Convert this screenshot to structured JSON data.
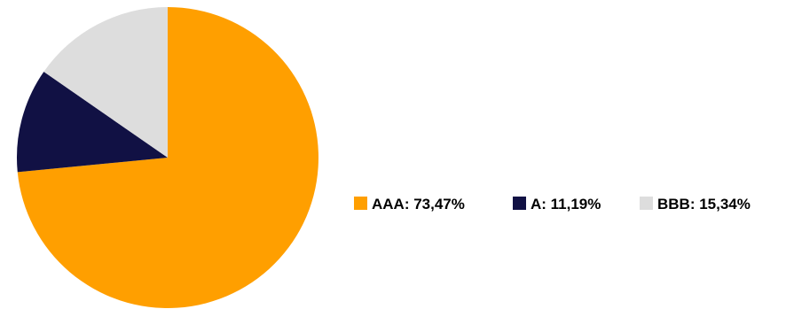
{
  "chart_data": {
    "type": "pie",
    "title": "",
    "start_angle_deg": 0,
    "direction": "clockwise",
    "slices": [
      {
        "label": "AAA",
        "value": 73.47,
        "display": "AAA: 73,47%",
        "color": "#FF9F00"
      },
      {
        "label": "A",
        "value": 11.19,
        "display": "A: 11,19%",
        "color": "#111144"
      },
      {
        "label": "BBB",
        "value": 15.34,
        "display": "BBB: 15,34%",
        "color": "#DDDDDD"
      }
    ],
    "legend": {
      "position": "right",
      "orientation": "horizontal"
    }
  }
}
